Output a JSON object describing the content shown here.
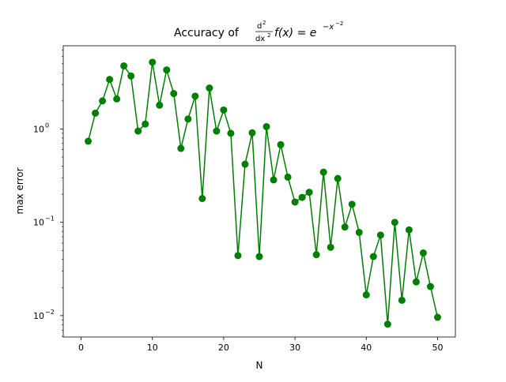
{
  "chart_data": {
    "type": "line",
    "title_prefix": "Accuracy of",
    "title_math": {
      "num": "d",
      "num_sup": "2",
      "den": "dx",
      "den_sup": "2",
      "func": "f(x) = e",
      "exp": "−x",
      "exp_sup": "−2"
    },
    "xlabel": "N",
    "ylabel": "max error",
    "yscale": "log",
    "xlim": [
      -2.5,
      52.5
    ],
    "ylim": [
      0.0059,
      7.8
    ],
    "grid": false,
    "color": "#008000",
    "xticks": [
      0,
      10,
      20,
      30,
      40,
      50
    ],
    "xtick_labels": [
      "0",
      "10",
      "20",
      "30",
      "40",
      "50"
    ],
    "yticks": [
      0.01,
      0.1,
      1
    ],
    "ytick_labels": [
      {
        "base": "10",
        "exp": "−2"
      },
      {
        "base": "10",
        "exp": "−1"
      },
      {
        "base": "10",
        "exp": "0"
      }
    ],
    "x": [
      1,
      2,
      3,
      4,
      5,
      6,
      7,
      8,
      9,
      10,
      11,
      12,
      13,
      14,
      15,
      16,
      17,
      18,
      19,
      20,
      21,
      22,
      23,
      24,
      25,
      26,
      27,
      28,
      29,
      30,
      31,
      32,
      33,
      34,
      35,
      36,
      37,
      38,
      39,
      40,
      41,
      42,
      43,
      44,
      45,
      46,
      47,
      48,
      49,
      50
    ],
    "y": [
      0.74,
      1.48,
      2.0,
      3.4,
      2.1,
      4.75,
      3.7,
      0.95,
      1.13,
      5.2,
      1.8,
      4.3,
      2.4,
      0.62,
      1.28,
      2.25,
      0.18,
      2.75,
      0.95,
      1.6,
      0.9,
      0.044,
      0.42,
      0.91,
      0.043,
      1.06,
      0.285,
      0.68,
      0.305,
      0.165,
      0.185,
      0.21,
      0.045,
      0.345,
      0.054,
      0.295,
      0.089,
      0.156,
      0.078,
      0.0167,
      0.043,
      0.073,
      0.0081,
      0.1,
      0.0146,
      0.083,
      0.023,
      0.047,
      0.0205,
      0.0096
    ]
  }
}
